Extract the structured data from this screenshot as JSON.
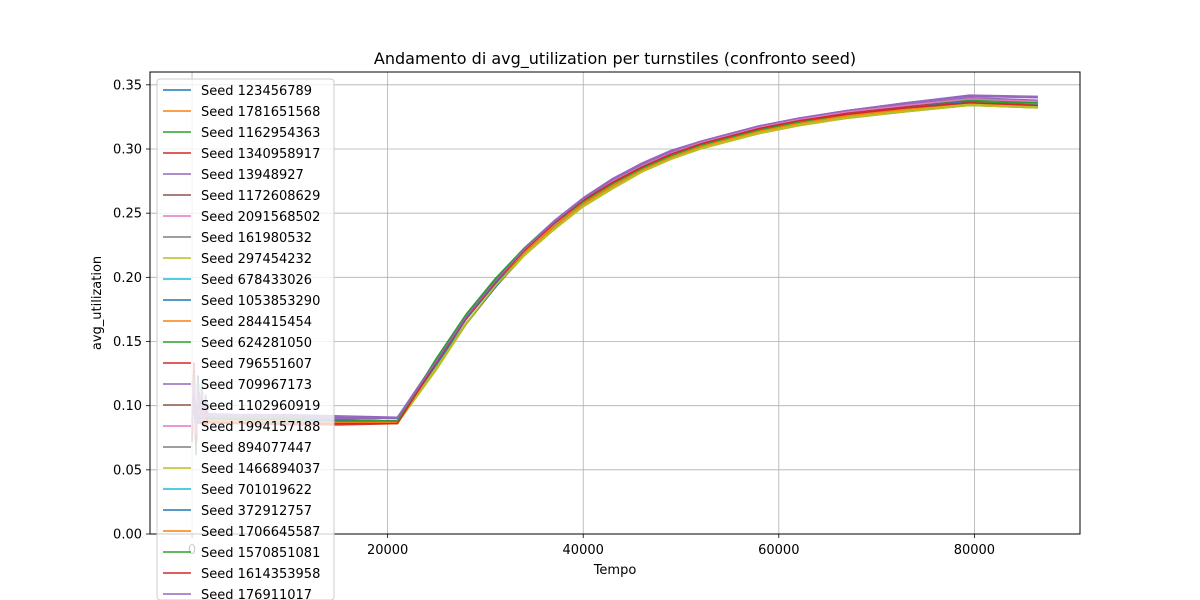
{
  "chart_data": {
    "type": "line",
    "title": "Andamento di avg_utilization per turnstiles (confronto seed)",
    "xlabel": "Tempo",
    "ylabel": "avg_utilization",
    "xlim": [
      -4300,
      90800
    ],
    "ylim": [
      0.0,
      0.36
    ],
    "xticks": [
      0,
      20000,
      40000,
      60000,
      80000
    ],
    "xtick_labels": [
      "0",
      "20000",
      "40000",
      "60000",
      "80000"
    ],
    "yticks": [
      0.0,
      0.05,
      0.1,
      0.15,
      0.2,
      0.25,
      0.3,
      0.35
    ],
    "ytick_labels": [
      "0.00",
      "0.05",
      "0.10",
      "0.15",
      "0.20",
      "0.25",
      "0.30",
      "0.35"
    ],
    "grid": true,
    "legend_position": "upper-left",
    "series": [
      {
        "name": "Seed 123456789",
        "color": "#1f77b4",
        "values": [
          0.092,
          0.09,
          0.089,
          0.089,
          0.088,
          0.135,
          0.168,
          0.196,
          0.22,
          0.24,
          0.258,
          0.272,
          0.284,
          0.294,
          0.302,
          0.309,
          0.315,
          0.321,
          0.326,
          0.331,
          0.335,
          0.333
        ]
      },
      {
        "name": "Seed 1781651568",
        "color": "#ff7f0e",
        "values": [
          0.09,
          0.089,
          0.088,
          0.088,
          0.087,
          0.133,
          0.167,
          0.195,
          0.219,
          0.239,
          0.257,
          0.271,
          0.283,
          0.293,
          0.301,
          0.308,
          0.314,
          0.32,
          0.325,
          0.33,
          0.334,
          0.334
        ]
      },
      {
        "name": "Seed 1162954363",
        "color": "#2ca02c",
        "values": [
          0.091,
          0.09,
          0.09,
          0.089,
          0.088,
          0.137,
          0.17,
          0.197,
          0.221,
          0.241,
          0.258,
          0.272,
          0.284,
          0.294,
          0.302,
          0.308,
          0.314,
          0.319,
          0.324,
          0.329,
          0.334,
          0.332
        ]
      },
      {
        "name": "Seed 1340958917",
        "color": "#d62728",
        "values": [
          0.087,
          0.086,
          0.085,
          0.085,
          0.086,
          0.134,
          0.168,
          0.196,
          0.221,
          0.242,
          0.26,
          0.274,
          0.286,
          0.296,
          0.303,
          0.309,
          0.315,
          0.321,
          0.326,
          0.331,
          0.335,
          0.333
        ]
      },
      {
        "name": "Seed 13948927",
        "color": "#9467bd",
        "values": [
          0.094,
          0.093,
          0.093,
          0.092,
          0.091,
          0.136,
          0.17,
          0.198,
          0.223,
          0.244,
          0.262,
          0.277,
          0.289,
          0.299,
          0.306,
          0.312,
          0.318,
          0.324,
          0.33,
          0.336,
          0.342,
          0.341
        ]
      },
      {
        "name": "Seed 1172608629",
        "color": "#8c564b",
        "values": [
          0.089,
          0.088,
          0.088,
          0.087,
          0.087,
          0.134,
          0.168,
          0.196,
          0.22,
          0.24,
          0.258,
          0.272,
          0.284,
          0.294,
          0.302,
          0.308,
          0.314,
          0.32,
          0.326,
          0.331,
          0.336,
          0.334
        ]
      },
      {
        "name": "Seed 2091568502",
        "color": "#e377c2",
        "values": [
          0.09,
          0.089,
          0.089,
          0.088,
          0.088,
          0.135,
          0.169,
          0.197,
          0.222,
          0.243,
          0.261,
          0.275,
          0.287,
          0.297,
          0.305,
          0.311,
          0.317,
          0.323,
          0.329,
          0.334,
          0.339,
          0.337
        ]
      },
      {
        "name": "Seed 161980532",
        "color": "#7f7f7f",
        "values": [
          0.088,
          0.087,
          0.087,
          0.087,
          0.087,
          0.134,
          0.168,
          0.196,
          0.22,
          0.241,
          0.259,
          0.273,
          0.285,
          0.295,
          0.303,
          0.309,
          0.315,
          0.321,
          0.327,
          0.332,
          0.337,
          0.335
        ]
      },
      {
        "name": "Seed 297454232",
        "color": "#bcbd22",
        "values": [
          0.088,
          0.087,
          0.086,
          0.086,
          0.086,
          0.128,
          0.163,
          0.192,
          0.217,
          0.237,
          0.255,
          0.269,
          0.282,
          0.292,
          0.3,
          0.306,
          0.312,
          0.318,
          0.324,
          0.329,
          0.334,
          0.332
        ]
      },
      {
        "name": "Seed 678433026",
        "color": "#17becf",
        "values": [
          0.089,
          0.088,
          0.088,
          0.088,
          0.087,
          0.134,
          0.168,
          0.196,
          0.22,
          0.24,
          0.258,
          0.272,
          0.284,
          0.294,
          0.302,
          0.308,
          0.315,
          0.321,
          0.327,
          0.332,
          0.337,
          0.335
        ]
      },
      {
        "name": "Seed 1053853290",
        "color": "#1f77b4",
        "values": [
          0.091,
          0.09,
          0.089,
          0.089,
          0.088,
          0.132,
          0.164,
          0.192,
          0.219,
          0.24,
          0.258,
          0.272,
          0.284,
          0.294,
          0.303,
          0.31,
          0.317,
          0.323,
          0.329,
          0.334,
          0.338,
          0.336
        ]
      },
      {
        "name": "Seed 284415454",
        "color": "#ff7f0e",
        "values": [
          0.09,
          0.089,
          0.088,
          0.088,
          0.087,
          0.134,
          0.167,
          0.195,
          0.219,
          0.24,
          0.258,
          0.272,
          0.284,
          0.294,
          0.302,
          0.308,
          0.314,
          0.32,
          0.326,
          0.331,
          0.336,
          0.334
        ]
      },
      {
        "name": "Seed 624281050",
        "color": "#2ca02c",
        "values": [
          0.09,
          0.089,
          0.089,
          0.088,
          0.088,
          0.137,
          0.171,
          0.199,
          0.223,
          0.243,
          0.26,
          0.274,
          0.286,
          0.296,
          0.304,
          0.31,
          0.316,
          0.322,
          0.328,
          0.333,
          0.338,
          0.337
        ]
      },
      {
        "name": "Seed 796551607",
        "color": "#d62728",
        "values": [
          0.088,
          0.087,
          0.086,
          0.086,
          0.086,
          0.134,
          0.168,
          0.196,
          0.221,
          0.242,
          0.26,
          0.275,
          0.287,
          0.297,
          0.305,
          0.311,
          0.317,
          0.323,
          0.328,
          0.333,
          0.337,
          0.335
        ]
      },
      {
        "name": "Seed 709967173",
        "color": "#9467bd",
        "values": [
          0.093,
          0.092,
          0.092,
          0.091,
          0.09,
          0.135,
          0.169,
          0.197,
          0.222,
          0.243,
          0.261,
          0.276,
          0.288,
          0.298,
          0.306,
          0.312,
          0.318,
          0.324,
          0.33,
          0.335,
          0.34,
          0.338
        ]
      },
      {
        "name": "Seed 1102960919",
        "color": "#8c564b",
        "values": [
          0.089,
          0.088,
          0.088,
          0.087,
          0.087,
          0.134,
          0.168,
          0.196,
          0.22,
          0.241,
          0.259,
          0.273,
          0.285,
          0.295,
          0.303,
          0.309,
          0.315,
          0.321,
          0.327,
          0.332,
          0.337,
          0.335
        ]
      },
      {
        "name": "Seed 1994157188",
        "color": "#e377c2",
        "values": [
          0.089,
          0.088,
          0.088,
          0.088,
          0.087,
          0.135,
          0.169,
          0.197,
          0.222,
          0.243,
          0.261,
          0.275,
          0.287,
          0.297,
          0.305,
          0.311,
          0.317,
          0.323,
          0.329,
          0.334,
          0.339,
          0.337
        ]
      },
      {
        "name": "Seed 894077447",
        "color": "#7f7f7f",
        "values": [
          0.088,
          0.088,
          0.087,
          0.087,
          0.087,
          0.134,
          0.168,
          0.196,
          0.22,
          0.241,
          0.259,
          0.273,
          0.285,
          0.295,
          0.303,
          0.309,
          0.315,
          0.321,
          0.327,
          0.332,
          0.337,
          0.335
        ]
      },
      {
        "name": "Seed 1466894037",
        "color": "#bcbd22",
        "values": [
          0.087,
          0.086,
          0.086,
          0.086,
          0.086,
          0.13,
          0.164,
          0.193,
          0.218,
          0.238,
          0.256,
          0.27,
          0.283,
          0.293,
          0.301,
          0.307,
          0.313,
          0.319,
          0.325,
          0.33,
          0.335,
          0.333
        ]
      },
      {
        "name": "Seed 701019622",
        "color": "#17becf",
        "values": [
          0.09,
          0.089,
          0.089,
          0.088,
          0.088,
          0.134,
          0.168,
          0.196,
          0.22,
          0.241,
          0.259,
          0.273,
          0.285,
          0.295,
          0.303,
          0.309,
          0.315,
          0.321,
          0.327,
          0.332,
          0.337,
          0.335
        ]
      },
      {
        "name": "Seed 372912757",
        "color": "#1f77b4",
        "values": [
          0.09,
          0.089,
          0.089,
          0.088,
          0.088,
          0.133,
          0.167,
          0.195,
          0.22,
          0.24,
          0.258,
          0.272,
          0.284,
          0.294,
          0.302,
          0.309,
          0.315,
          0.321,
          0.327,
          0.332,
          0.337,
          0.334
        ]
      },
      {
        "name": "Seed 1706645587",
        "color": "#ff7f0e",
        "values": [
          0.089,
          0.088,
          0.088,
          0.087,
          0.087,
          0.134,
          0.168,
          0.196,
          0.22,
          0.24,
          0.258,
          0.272,
          0.284,
          0.294,
          0.302,
          0.308,
          0.314,
          0.32,
          0.326,
          0.331,
          0.336,
          0.334
        ]
      },
      {
        "name": "Seed 1570851081",
        "color": "#2ca02c",
        "values": [
          0.091,
          0.09,
          0.09,
          0.089,
          0.088,
          0.136,
          0.17,
          0.198,
          0.222,
          0.242,
          0.259,
          0.273,
          0.285,
          0.295,
          0.303,
          0.309,
          0.315,
          0.321,
          0.327,
          0.332,
          0.336,
          0.336
        ]
      },
      {
        "name": "Seed 1614353958",
        "color": "#d62728",
        "values": [
          0.087,
          0.086,
          0.086,
          0.086,
          0.086,
          0.134,
          0.168,
          0.196,
          0.221,
          0.242,
          0.26,
          0.274,
          0.286,
          0.296,
          0.304,
          0.31,
          0.316,
          0.322,
          0.327,
          0.332,
          0.336,
          0.334
        ]
      },
      {
        "name": "Seed 176911017",
        "color": "#9467bd",
        "values": [
          0.092,
          0.091,
          0.091,
          0.09,
          0.09,
          0.135,
          0.169,
          0.197,
          0.222,
          0.243,
          0.261,
          0.276,
          0.288,
          0.298,
          0.306,
          0.312,
          0.318,
          0.324,
          0.33,
          0.336,
          0.341,
          0.34
        ]
      }
    ],
    "x": [
      500,
      5000,
      10000,
      15000,
      21000,
      25000,
      28000,
      31000,
      34000,
      37000,
      40000,
      43000,
      46000,
      49000,
      52000,
      55000,
      58000,
      62000,
      67000,
      73000,
      79500,
      86500
    ],
    "early_spike": {
      "x": [
        0,
        200,
        400,
        600,
        800,
        1000,
        1200,
        1400,
        1600
      ],
      "values": [
        0.08,
        0.125,
        0.07,
        0.115,
        0.095,
        0.108,
        0.092,
        0.1,
        0.093
      ]
    }
  }
}
